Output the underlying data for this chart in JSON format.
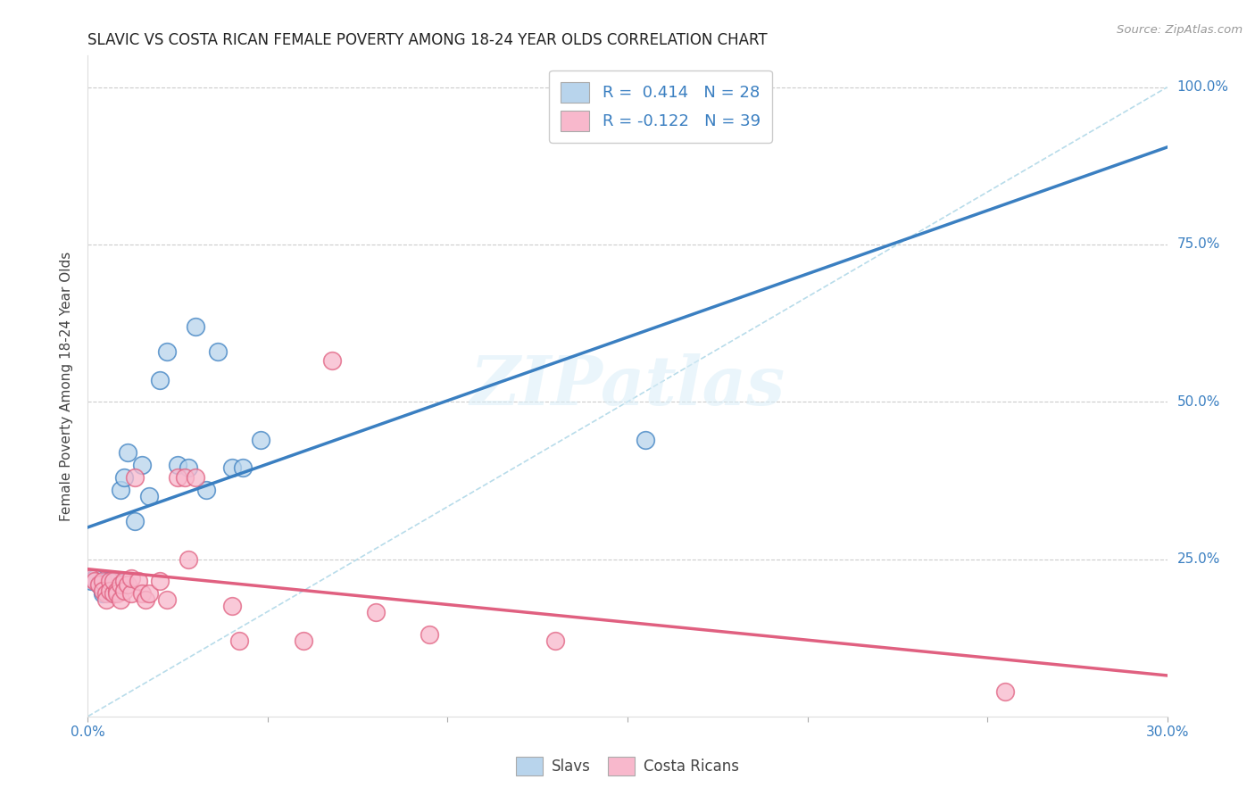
{
  "title": "SLAVIC VS COSTA RICAN FEMALE POVERTY AMONG 18-24 YEAR OLDS CORRELATION CHART",
  "source": "Source: ZipAtlas.com",
  "ylabel": "Female Poverty Among 18-24 Year Olds",
  "xlim": [
    0.0,
    0.3
  ],
  "ylim": [
    0.0,
    1.05
  ],
  "slavs_R": 0.414,
  "slavs_N": 28,
  "costa_R": -0.122,
  "costa_N": 39,
  "slavs_color": "#b8d4ec",
  "costa_color": "#f8b8cc",
  "slavs_line_color": "#3a7fc1",
  "costa_line_color": "#e06080",
  "diagonal_color": "#b8dcea",
  "watermark": "ZIPatlas",
  "slavs_x": [
    0.001,
    0.002,
    0.003,
    0.004,
    0.004,
    0.005,
    0.005,
    0.006,
    0.007,
    0.008,
    0.008,
    0.009,
    0.01,
    0.011,
    0.013,
    0.015,
    0.017,
    0.02,
    0.022,
    0.025,
    0.028,
    0.03,
    0.033,
    0.036,
    0.04,
    0.043,
    0.048,
    0.155
  ],
  "slavs_y": [
    0.215,
    0.22,
    0.21,
    0.2,
    0.195,
    0.215,
    0.2,
    0.215,
    0.195,
    0.215,
    0.2,
    0.36,
    0.38,
    0.42,
    0.31,
    0.4,
    0.35,
    0.535,
    0.58,
    0.4,
    0.395,
    0.62,
    0.36,
    0.58,
    0.395,
    0.395,
    0.44,
    0.44
  ],
  "costa_x": [
    0.001,
    0.002,
    0.003,
    0.004,
    0.004,
    0.005,
    0.005,
    0.006,
    0.006,
    0.007,
    0.007,
    0.008,
    0.008,
    0.009,
    0.009,
    0.01,
    0.01,
    0.011,
    0.012,
    0.012,
    0.013,
    0.014,
    0.015,
    0.016,
    0.017,
    0.02,
    0.022,
    0.025,
    0.027,
    0.028,
    0.03,
    0.04,
    0.042,
    0.06,
    0.068,
    0.08,
    0.095,
    0.13,
    0.255
  ],
  "costa_y": [
    0.22,
    0.215,
    0.21,
    0.215,
    0.2,
    0.195,
    0.185,
    0.215,
    0.2,
    0.195,
    0.215,
    0.2,
    0.195,
    0.185,
    0.21,
    0.215,
    0.2,
    0.21,
    0.195,
    0.22,
    0.38,
    0.215,
    0.195,
    0.185,
    0.195,
    0.215,
    0.185,
    0.38,
    0.38,
    0.25,
    0.38,
    0.175,
    0.12,
    0.12,
    0.565,
    0.165,
    0.13,
    0.12,
    0.04
  ],
  "background_color": "#ffffff",
  "grid_color": "#cccccc"
}
